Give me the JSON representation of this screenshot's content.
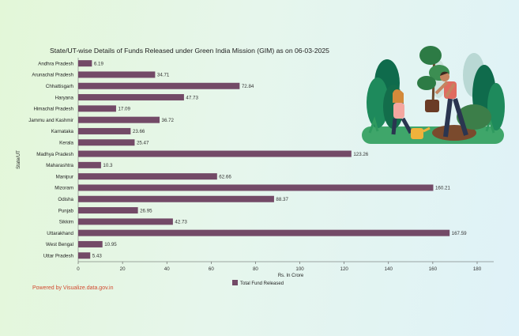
{
  "powered_by": "Powered by Visualize.data.gov.in",
  "chart_data": {
    "type": "bar",
    "orientation": "horizontal",
    "title": "State/UT-wise Details of Funds Released under Green India Mission (GIM) as on 06-03-2025",
    "xlabel": "Rs. In Crore",
    "ylabel": "State/UT",
    "xlim": [
      0,
      180
    ],
    "xticks": [
      0,
      20,
      40,
      60,
      80,
      100,
      120,
      140,
      160,
      180
    ],
    "grid": false,
    "legend_position": "bottom",
    "bar_color": "#734a67",
    "categories": [
      "Andhra Pradesh",
      "Arunachal Pradesh",
      "Chhattisgarh",
      "Haryana",
      "Himachal Pradesh",
      "Jammu and Kashmir",
      "Karnataka",
      "Kerala",
      "Madhya Pradesh",
      "Maharashtra",
      "Manipur",
      "Mizoram",
      "Odisha",
      "Punjab",
      "Sikkim",
      "Uttarakhand",
      "West Bengal",
      "Uttar Pradesh"
    ],
    "series": [
      {
        "name": "Total Fund Released",
        "values": [
          6.19,
          34.71,
          72.84,
          47.73,
          17.09,
          36.72,
          23.66,
          25.47,
          123.26,
          10.3,
          62.66,
          160.21,
          88.37,
          26.95,
          42.73,
          167.59,
          10.95,
          5.43
        ],
        "labels": [
          "6.19",
          "34.71",
          "72.84",
          "47.73",
          "17.09",
          "36.72",
          "23.66",
          "25.47",
          "123.26",
          "10.3",
          "62.66",
          "160.21",
          "88.37",
          "26.95",
          "42.73",
          "167.59",
          "10.95",
          "5.43"
        ]
      }
    ]
  }
}
